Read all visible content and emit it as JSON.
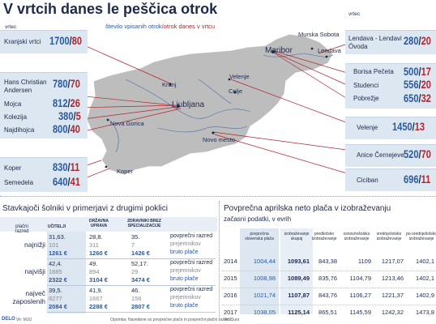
{
  "header": {
    "title": "V vrtcih danes le peščica otrok",
    "legend_children": "število vpisanih otrok",
    "legend_sep": "/",
    "legend_today": "otrok danes v vrtcu",
    "vrtec_left": "vrtec",
    "vrtec_right": "vrtec"
  },
  "colors": {
    "blue": "#2a5aa0",
    "red": "#b0252f",
    "dark": "#1d2a4a",
    "panel": "#dde7f1",
    "map": "#bdbdbd",
    "river": "#2a5aa0"
  },
  "kindergartens": {
    "left": [
      {
        "name": "Kranjski vrtci",
        "enrolled": "1700",
        "present": "80"
      },
      {
        "name": "Hans Christian Andersen",
        "enrolled": "780",
        "present": "70"
      },
      {
        "name": "Mojca",
        "enrolled": "812",
        "present": "26"
      },
      {
        "name": "Kolezija",
        "enrolled": "380",
        "present": "5"
      },
      {
        "name": "Najdihojca",
        "enrolled": "800",
        "present": "40"
      },
      {
        "name": "Koper",
        "enrolled": "830",
        "present": "11"
      },
      {
        "name": "Semedela",
        "enrolled": "640",
        "present": "41"
      }
    ],
    "right": [
      {
        "name": "Lendava - Lendavi Óvoda",
        "enrolled": "280",
        "present": "20"
      },
      {
        "name": "Borisa Pečeta",
        "enrolled": "500",
        "present": "17"
      },
      {
        "name": "Studenci",
        "enrolled": "556",
        "present": "20"
      },
      {
        "name": "Pobrežje",
        "enrolled": "650",
        "present": "32"
      },
      {
        "name": "Velenje",
        "enrolled": "1450",
        "present": "13"
      },
      {
        "name": "Anice Černejeve",
        "enrolled": "520",
        "present": "70"
      },
      {
        "name": "Ciciban",
        "enrolled": "696",
        "present": "11"
      }
    ]
  },
  "map_labels": {
    "murska_sobota": "Murska Sobota",
    "lendava": "Lendava",
    "maribor": "Maribor",
    "velenje": "Velenje",
    "celje": "Celje",
    "kranj": "Kranj",
    "ljubljana": "Ljubljana",
    "nova_gorica": "Nova Gorica",
    "novo_mesto": "Novo mesto",
    "koper": "Koper"
  },
  "strike": {
    "title": "Stavkajoči šolniki v primerjavi z drugimi poklici",
    "col_group": "plačni razred",
    "cols": [
      "UČITELJI",
      "DRŽAVNA UPRAVA",
      "ZDRAVNIKI BREZ SPECIALIZACIJE"
    ],
    "groups": [
      {
        "label": "najnižji",
        "rows": [
          [
            "31,63.",
            "28,8.",
            "35."
          ],
          [
            "101",
            "311",
            "7"
          ],
          [
            "1261 €",
            "1260 €",
            "1426 €"
          ]
        ]
      },
      {
        "label": "najvišji",
        "rows": [
          [
            "42,4.",
            "49.",
            "52,17."
          ],
          [
            "1885",
            "894",
            "29"
          ],
          [
            "2322 €",
            "3104 €",
            "3474 €"
          ]
        ]
      },
      {
        "label": "največ zaposlenih",
        "rows": [
          [
            "39,5.",
            "41,9.",
            "46."
          ],
          [
            "8277",
            "1667",
            "156"
          ],
          [
            "2084 €",
            "2288 €",
            "2807 €"
          ]
        ]
      }
    ],
    "row_labels": [
      "povprečni razred",
      "prejemnikov",
      "bruto plače"
    ],
    "source": "Vir: MJU",
    "note": "Opomba: Navedene so povprečne plače in povprečni plačni razredi."
  },
  "chart_data": {
    "type": "table",
    "title": "Povprečna aprilska neto plača v izobraževanju",
    "subtitle": "začasni podatki, v evrih",
    "columns": [
      "povprečna slovenska plača",
      "izobraževanje skupaj",
      "predšolsko izobraževanje",
      "osnovnošolsko izobraževanje",
      "srednješolsko izobraževanje",
      "po-srednješolsko izobraževanje"
    ],
    "rows": [
      {
        "year": "2014",
        "values": [
          "1004,44",
          "1093,61",
          "843,38",
          "1109",
          "1217,07",
          "1402,1"
        ]
      },
      {
        "year": "2015",
        "values": [
          "1008,98",
          "1089,49",
          "835,76",
          "1104,79",
          "1213,46",
          "1402,1"
        ]
      },
      {
        "year": "2016",
        "values": [
          "1021,74",
          "1107,87",
          "843,76",
          "1106,27",
          "1221,37",
          "1402,9"
        ]
      },
      {
        "year": "2017",
        "values": [
          "1038,05",
          "1125,14",
          "865,51",
          "1145,59",
          "1242,32",
          "1473,8"
        ]
      }
    ],
    "source": "Vir: Surs"
  },
  "footer": {
    "logo": "DELO"
  }
}
